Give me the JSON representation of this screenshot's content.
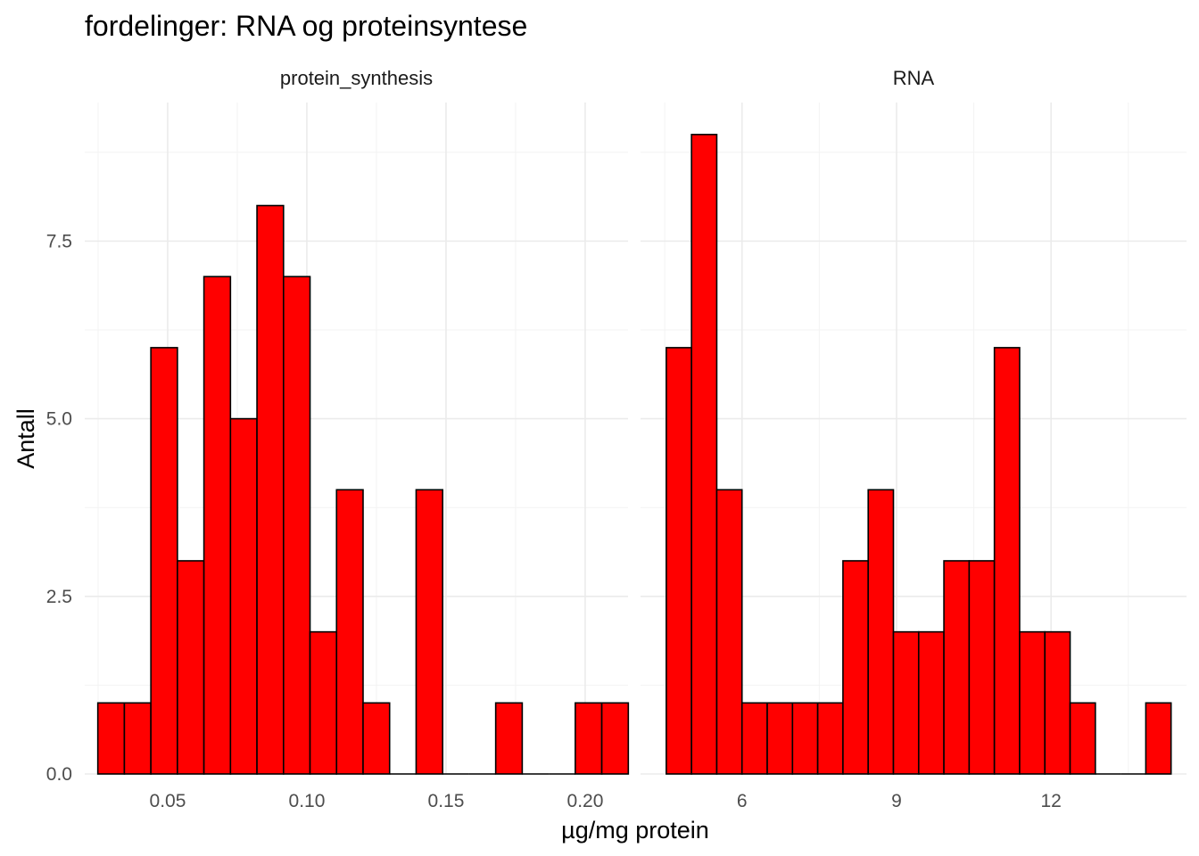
{
  "chart_data": {
    "type": "bar",
    "title": "fordelinger: RNA og proteinsyntese",
    "xlabel": "µg/mg protein",
    "ylabel": "Antall",
    "fill_color": "#FF0000",
    "outline_color": "#000000",
    "grid": true,
    "ylim": [
      0,
      9.45
    ],
    "y_ticks": [
      {
        "value": 0,
        "label": "0.0"
      },
      {
        "value": 2.5,
        "label": "2.5"
      },
      {
        "value": 5,
        "label": "5.0"
      },
      {
        "value": 7.5,
        "label": "7.5"
      }
    ],
    "facets": [
      {
        "name": "protein_synthesis",
        "xlim": [
          0.0202,
          0.2154
        ],
        "x_ticks": [
          {
            "value": 0.05,
            "label": "0.05"
          },
          {
            "value": 0.1,
            "label": "0.10"
          },
          {
            "value": 0.15,
            "label": "0.15"
          },
          {
            "value": 0.2,
            "label": "0.20"
          }
        ],
        "bins_start": 0.0249,
        "bin_width": 0.00953,
        "counts": [
          1,
          1,
          6,
          3,
          7,
          5,
          8,
          7,
          2,
          4,
          1,
          0,
          4,
          0,
          0,
          1,
          0,
          0,
          1,
          1
        ]
      },
      {
        "name": "RNA",
        "xlim": [
          4.03,
          14.63
        ],
        "x_ticks": [
          {
            "value": 6,
            "label": "6"
          },
          {
            "value": 9,
            "label": "9"
          },
          {
            "value": 12,
            "label": "12"
          }
        ],
        "bins_start": 4.53,
        "bin_width": 0.49,
        "counts": [
          6,
          9,
          4,
          1,
          1,
          1,
          1,
          3,
          4,
          2,
          2,
          3,
          3,
          6,
          2,
          2,
          1,
          0,
          0,
          1
        ]
      }
    ]
  }
}
